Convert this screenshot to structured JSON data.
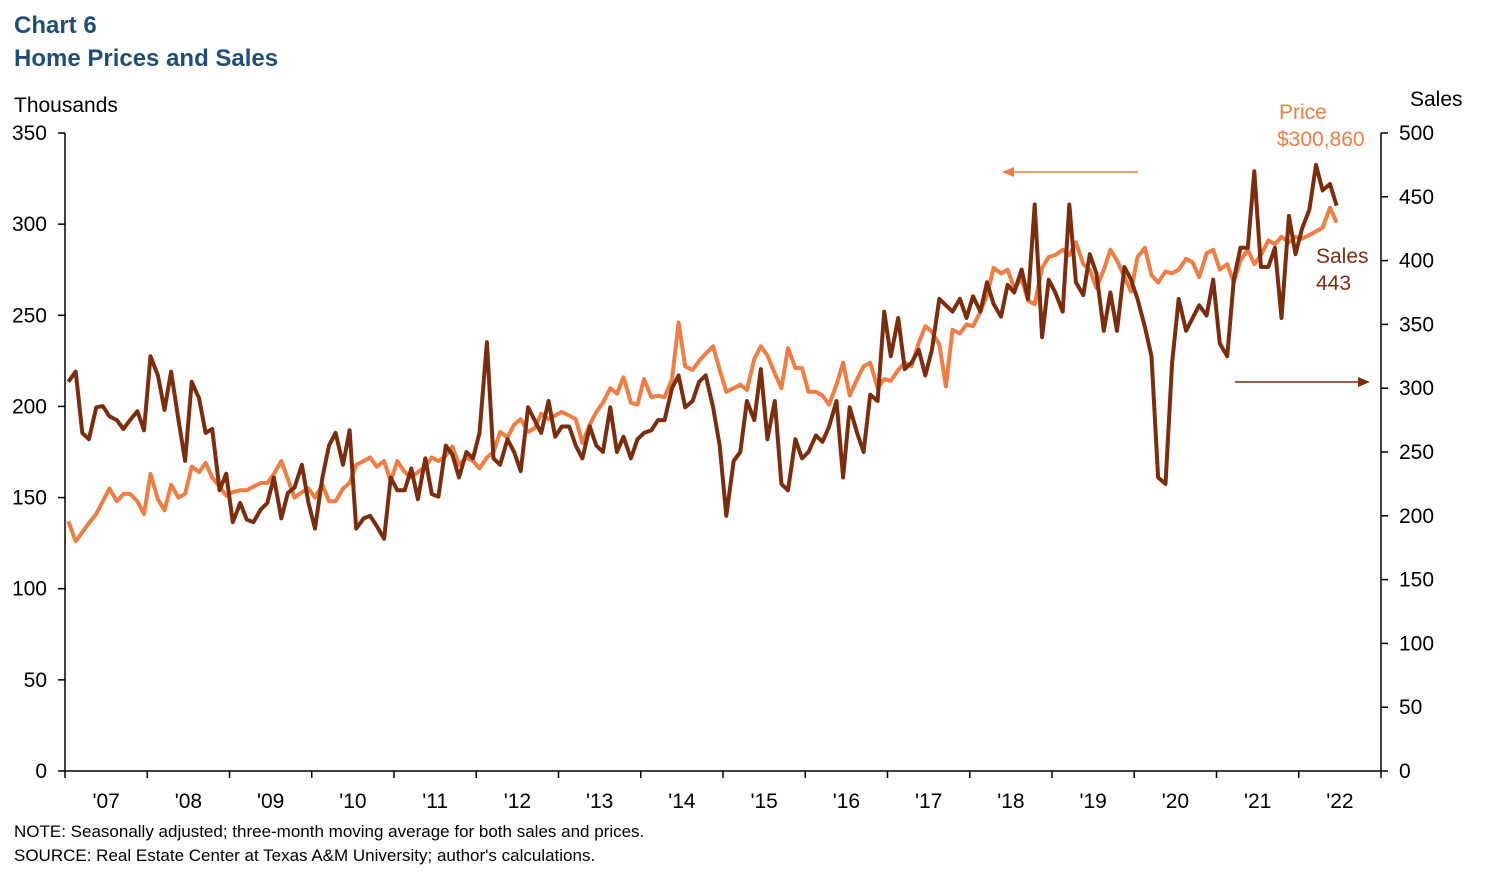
{
  "chart_data": {
    "type": "line",
    "title": "Chart 6",
    "subtitle": "Home Prices and Sales",
    "y_axis_label": "Thousands",
    "y2_axis_label": "Sales",
    "note": "NOTE: Seasonally adjusted; three-month moving average for both sales and prices.",
    "source": "SOURCE: Real Estate Center at Texas A&M University; author's calculations.",
    "annotations": {
      "price_name": "Price",
      "price_value": "$300,860",
      "sales_name": "Sales",
      "sales_value": "443"
    },
    "xlim": [
      2007,
      2023
    ],
    "xticks": [
      {
        "value": 2007.5,
        "label": "'07"
      },
      {
        "value": 2008.5,
        "label": "'08"
      },
      {
        "value": 2009.5,
        "label": "'09"
      },
      {
        "value": 2010.5,
        "label": "'10"
      },
      {
        "value": 2011.5,
        "label": "'11"
      },
      {
        "value": 2012.5,
        "label": "'12"
      },
      {
        "value": 2013.5,
        "label": "'13"
      },
      {
        "value": 2014.5,
        "label": "'14"
      },
      {
        "value": 2015.5,
        "label": "'15"
      },
      {
        "value": 2016.5,
        "label": "'16"
      },
      {
        "value": 2017.5,
        "label": "'17"
      },
      {
        "value": 2018.5,
        "label": "'18"
      },
      {
        "value": 2019.5,
        "label": "'19"
      },
      {
        "value": 2020.5,
        "label": "'20"
      },
      {
        "value": 2021.5,
        "label": "'21"
      },
      {
        "value": 2022.5,
        "label": "'22"
      }
    ],
    "ylim": [
      0,
      350
    ],
    "yticks": [
      0,
      50,
      100,
      150,
      200,
      250,
      300,
      350
    ],
    "y2lim": [
      0,
      500
    ],
    "y2ticks": [
      0,
      50,
      100,
      150,
      200,
      250,
      300,
      350,
      400,
      450,
      500
    ],
    "x": [
      2007.04,
      2007.13,
      2007.21,
      2007.29,
      2007.38,
      2007.46,
      2007.54,
      2007.63,
      2007.71,
      2007.79,
      2007.88,
      2007.96,
      2008.04,
      2008.13,
      2008.21,
      2008.29,
      2008.38,
      2008.46,
      2008.54,
      2008.63,
      2008.71,
      2008.79,
      2008.88,
      2008.96,
      2009.04,
      2009.13,
      2009.21,
      2009.29,
      2009.38,
      2009.46,
      2009.54,
      2009.63,
      2009.71,
      2009.79,
      2009.88,
      2009.96,
      2010.04,
      2010.13,
      2010.21,
      2010.29,
      2010.38,
      2010.46,
      2010.54,
      2010.63,
      2010.71,
      2010.79,
      2010.88,
      2010.96,
      2011.04,
      2011.13,
      2011.21,
      2011.29,
      2011.38,
      2011.46,
      2011.54,
      2011.63,
      2011.71,
      2011.79,
      2011.88,
      2011.96,
      2012.04,
      2012.13,
      2012.21,
      2012.29,
      2012.38,
      2012.46,
      2012.54,
      2012.63,
      2012.71,
      2012.79,
      2012.88,
      2012.96,
      2013.04,
      2013.13,
      2013.21,
      2013.29,
      2013.38,
      2013.46,
      2013.54,
      2013.63,
      2013.71,
      2013.79,
      2013.88,
      2013.96,
      2014.04,
      2014.13,
      2014.21,
      2014.29,
      2014.38,
      2014.46,
      2014.54,
      2014.63,
      2014.71,
      2014.79,
      2014.88,
      2014.96,
      2015.04,
      2015.13,
      2015.21,
      2015.29,
      2015.38,
      2015.46,
      2015.54,
      2015.63,
      2015.71,
      2015.79,
      2015.88,
      2015.96,
      2016.04,
      2016.13,
      2016.21,
      2016.29,
      2016.38,
      2016.46,
      2016.54,
      2016.63,
      2016.71,
      2016.79,
      2016.88,
      2016.96,
      2017.04,
      2017.13,
      2017.21,
      2017.29,
      2017.38,
      2017.46,
      2017.54,
      2017.63,
      2017.71,
      2017.79,
      2017.88,
      2017.96,
      2018.04,
      2018.13,
      2018.21,
      2018.29,
      2018.38,
      2018.46,
      2018.54,
      2018.63,
      2018.71,
      2018.79,
      2018.88,
      2018.96,
      2019.04,
      2019.13,
      2019.21,
      2019.29,
      2019.38,
      2019.46,
      2019.54,
      2019.63,
      2019.71,
      2019.79,
      2019.88,
      2019.96,
      2020.04,
      2020.13,
      2020.21,
      2020.29,
      2020.38,
      2020.46,
      2020.54,
      2020.63,
      2020.71,
      2020.79,
      2020.88,
      2020.96,
      2021.04,
      2021.13,
      2021.21,
      2021.29,
      2021.38,
      2021.46,
      2021.54,
      2021.63,
      2021.71,
      2021.79,
      2021.88,
      2021.96,
      2022.04,
      2022.13,
      2022.21,
      2022.29,
      2022.38,
      2022.46
    ],
    "series": [
      {
        "name": "Price",
        "color": "#ef7d44",
        "values": [
          137,
          126,
          131,
          136,
          141,
          148,
          155,
          148,
          152,
          152,
          148,
          141,
          163,
          149,
          143,
          157,
          150,
          152,
          167,
          164,
          169,
          161,
          156,
          151,
          153,
          154,
          154,
          156,
          158,
          158,
          163,
          170,
          160,
          150,
          153,
          155,
          150,
          157,
          148,
          148,
          155,
          158,
          168,
          170,
          172,
          167,
          170,
          159,
          170,
          164,
          161,
          164,
          167,
          172,
          170,
          173,
          178,
          168,
          172,
          170,
          166,
          172,
          175,
          186,
          183,
          190,
          193,
          186,
          188,
          196,
          193,
          195,
          197,
          195,
          193,
          180,
          190,
          197,
          202,
          210,
          207,
          216,
          202,
          201,
          215,
          205,
          206,
          205,
          215,
          246,
          222,
          220,
          225,
          229,
          233,
          220,
          208,
          210,
          212,
          209,
          226,
          233,
          228,
          218,
          210,
          232,
          221,
          221,
          208,
          208,
          206,
          201,
          212,
          224,
          206,
          215,
          222,
          224,
          210,
          215,
          214,
          220,
          224,
          222,
          235,
          244,
          241,
          234,
          211,
          242,
          240,
          245,
          244,
          252,
          261,
          276,
          273,
          275,
          265,
          270,
          258,
          256,
          276,
          282,
          283,
          286,
          283,
          290,
          278,
          275,
          265,
          275,
          286,
          280,
          271,
          263,
          282,
          287,
          272,
          268,
          274,
          273,
          275,
          281,
          279,
          271,
          284,
          286,
          275,
          278,
          268,
          280,
          286,
          278,
          283,
          291,
          289,
          293,
          290,
          293,
          292,
          294,
          296,
          298,
          309,
          300.86
        ]
      },
      {
        "name": "Sales",
        "color": "#7b2d0e",
        "axis": "y2",
        "values": [
          305,
          313,
          265,
          260,
          285,
          286,
          278,
          275,
          268,
          275,
          282,
          267,
          325,
          310,
          283,
          313,
          275,
          243,
          305,
          292,
          265,
          268,
          220,
          233,
          195,
          210,
          197,
          195,
          205,
          210,
          230,
          198,
          218,
          222,
          240,
          210,
          190,
          230,
          255,
          265,
          240,
          267,
          190,
          198,
          200,
          192,
          182,
          230,
          220,
          220,
          237,
          213,
          245,
          217,
          215,
          255,
          248,
          230,
          250,
          245,
          265,
          336,
          245,
          240,
          260,
          250,
          235,
          285,
          275,
          265,
          290,
          262,
          270,
          270,
          255,
          245,
          270,
          255,
          250,
          285,
          250,
          262,
          245,
          260,
          265,
          267,
          275,
          275,
          300,
          310,
          285,
          290,
          305,
          310,
          285,
          255,
          200,
          243,
          250,
          290,
          275,
          315,
          260,
          290,
          225,
          220,
          260,
          245,
          250,
          263,
          258,
          270,
          290,
          230,
          285,
          265,
          250,
          295,
          290,
          360,
          325,
          355,
          315,
          320,
          330,
          310,
          330,
          370,
          365,
          360,
          370,
          355,
          372,
          360,
          383,
          366,
          356,
          381,
          375,
          393,
          370,
          444,
          340,
          385,
          375,
          360,
          444,
          383,
          373,
          405,
          390,
          345,
          375,
          345,
          395,
          385,
          370,
          348,
          325,
          230,
          225,
          320,
          370,
          345,
          355,
          365,
          357,
          385,
          335,
          325,
          385,
          410,
          410,
          470,
          395,
          395,
          410,
          355,
          435,
          405,
          425,
          440,
          475,
          455,
          460,
          443
        ]
      }
    ]
  }
}
